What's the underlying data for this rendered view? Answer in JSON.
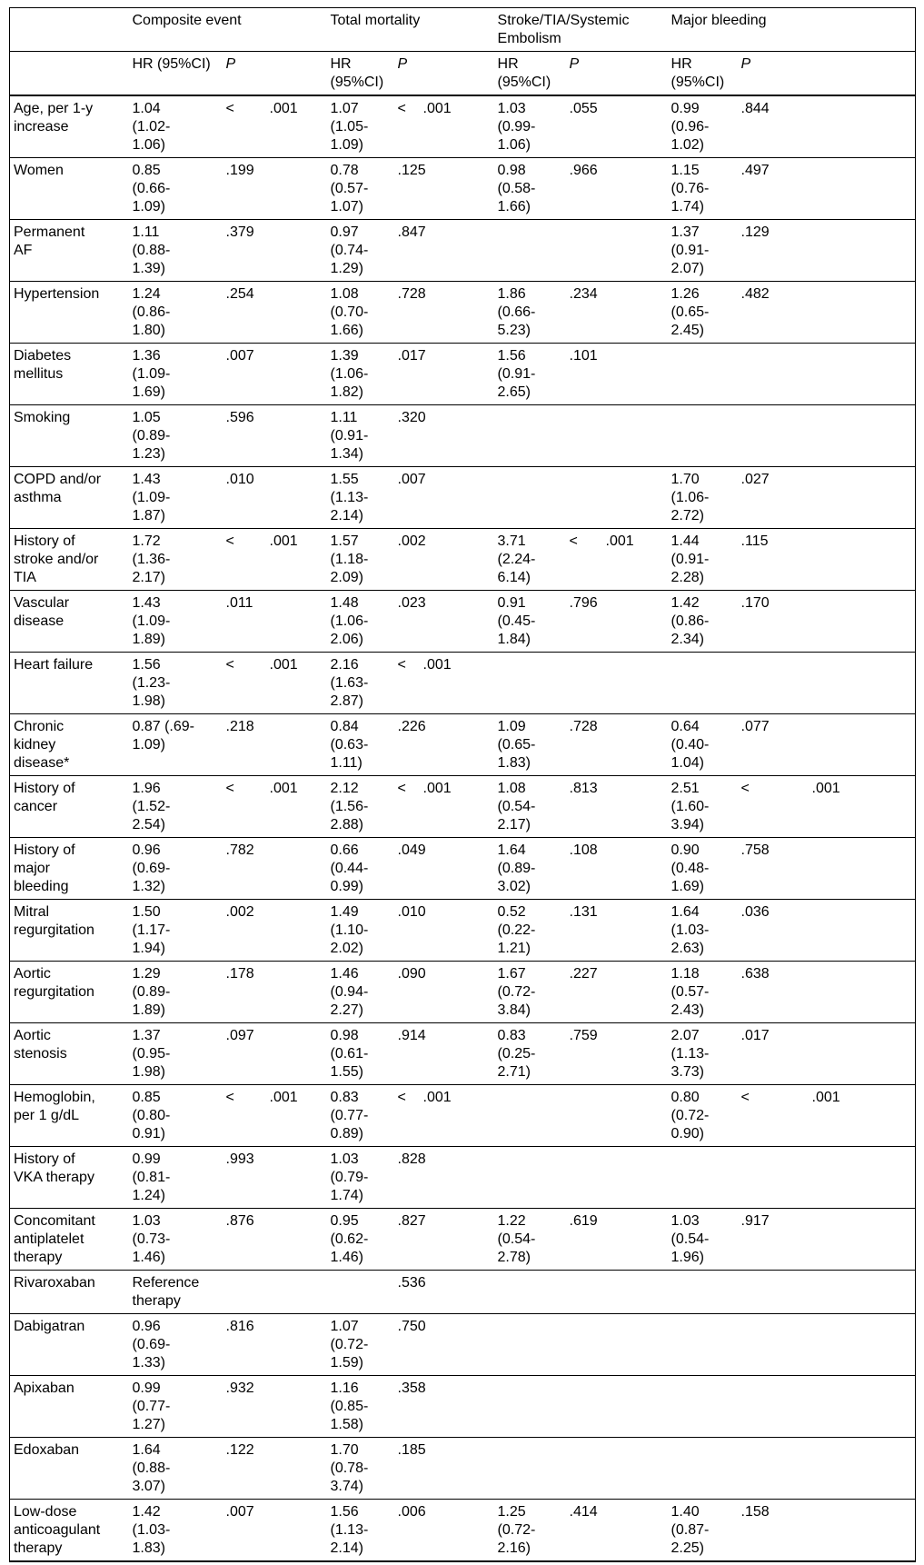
{
  "table": {
    "columns": {
      "row_header": "",
      "groups": [
        {
          "label": "Composite event"
        },
        {
          "label": "Total mortality"
        },
        {
          "label": "Stroke/TIA/Systemic Embolism"
        },
        {
          "label": "Major bleeding"
        }
      ],
      "sub_headers": {
        "hr": "HR (95%CI)",
        "p": "P"
      }
    },
    "rows": [
      {
        "label": "Age, per 1-y increase",
        "cells": [
          {
            "hr": "1.04 (1.02-1.06)",
            "p": "< .001"
          },
          {
            "hr": "1.07 (1.05-1.09)",
            "p": "< .001"
          },
          {
            "hr": "1.03 (0.99-1.06)",
            "p": ".055"
          },
          {
            "hr": "0.99 (0.96-1.02)",
            "p": ".844"
          }
        ]
      },
      {
        "label": "Women",
        "cells": [
          {
            "hr": "0.85 (0.66-1.09)",
            "p": ".199"
          },
          {
            "hr": "0.78 (0.57-1.07)",
            "p": ".125"
          },
          {
            "hr": "0.98 (0.58-1.66)",
            "p": ".966"
          },
          {
            "hr": "1.15 (0.76-1.74)",
            "p": ".497"
          }
        ]
      },
      {
        "label": "Permanent AF",
        "cells": [
          {
            "hr": "1.11 (0.88-1.39)",
            "p": ".379"
          },
          {
            "hr": "0.97 (0.74-1.29)",
            "p": ".847"
          },
          {
            "hr": "",
            "p": ""
          },
          {
            "hr": "1.37 (0.91-2.07)",
            "p": ".129"
          }
        ]
      },
      {
        "label": "Hypertension",
        "cells": [
          {
            "hr": "1.24 (0.86-1.80)",
            "p": ".254"
          },
          {
            "hr": "1.08 (0.70-1.66)",
            "p": ".728"
          },
          {
            "hr": "1.86 (0.66-5.23)",
            "p": ".234"
          },
          {
            "hr": "1.26 (0.65-2.45)",
            "p": ".482"
          }
        ]
      },
      {
        "label": "Diabetes mellitus",
        "cells": [
          {
            "hr": "1.36 (1.09-1.69)",
            "p": ".007"
          },
          {
            "hr": "1.39 (1.06-1.82)",
            "p": ".017"
          },
          {
            "hr": "1.56 (0.91-2.65)",
            "p": ".101"
          },
          {
            "hr": "",
            "p": ""
          }
        ]
      },
      {
        "label": "Smoking",
        "cells": [
          {
            "hr": "1.05 (0.89-1.23)",
            "p": ".596"
          },
          {
            "hr": "1.11 (0.91-1.34)",
            "p": ".320"
          },
          {
            "hr": "",
            "p": ""
          },
          {
            "hr": "",
            "p": ""
          }
        ]
      },
      {
        "label": "COPD and/or asthma",
        "cells": [
          {
            "hr": "1.43 (1.09-1.87)",
            "p": ".010"
          },
          {
            "hr": "1.55 (1.13-2.14)",
            "p": ".007"
          },
          {
            "hr": "",
            "p": ""
          },
          {
            "hr": "1.70 (1.06-2.72)",
            "p": ".027"
          }
        ]
      },
      {
        "label": "History of stroke and/or TIA",
        "cells": [
          {
            "hr": "1.72 (1.36-2.17)",
            "p": "< .001"
          },
          {
            "hr": "1.57 (1.18-2.09)",
            "p": ".002"
          },
          {
            "hr": "3.71 (2.24-6.14)",
            "p": "< .001"
          },
          {
            "hr": "1.44 (0.91-2.28)",
            "p": ".115"
          }
        ]
      },
      {
        "label": "Vascular disease",
        "cells": [
          {
            "hr": "1.43 (1.09-1.89)",
            "p": ".011"
          },
          {
            "hr": "1.48 (1.06-2.06)",
            "p": ".023"
          },
          {
            "hr": "0.91 (0.45-1.84)",
            "p": ".796"
          },
          {
            "hr": "1.42 (0.86-2.34)",
            "p": ".170"
          }
        ]
      },
      {
        "label": "Heart failure",
        "cells": [
          {
            "hr": "1.56 (1.23-1.98)",
            "p": "< .001"
          },
          {
            "hr": "2.16 (1.63-2.87)",
            "p": "< .001"
          },
          {
            "hr": "",
            "p": ""
          },
          {
            "hr": "",
            "p": ""
          }
        ]
      },
      {
        "label": "Chronic kidney disease*",
        "cells": [
          {
            "hr": "0.87 (.69-1.09)",
            "p": ".218"
          },
          {
            "hr": "0.84 (0.63-1.11)",
            "p": ".226"
          },
          {
            "hr": "1.09 (0.65-1.83)",
            "p": ".728"
          },
          {
            "hr": "0.64 (0.40-1.04)",
            "p": ".077"
          }
        ]
      },
      {
        "label": "History of cancer",
        "cells": [
          {
            "hr": "1.96 (1.52-2.54)",
            "p": "< .001"
          },
          {
            "hr": "2.12 (1.56-2.88)",
            "p": "< .001"
          },
          {
            "hr": "1.08 (0.54-2.17)",
            "p": ".813"
          },
          {
            "hr": "2.51 (1.60-3.94)",
            "p": "< .001"
          }
        ]
      },
      {
        "label": "History of major bleeding",
        "cells": [
          {
            "hr": "0.96 (0.69-1.32)",
            "p": ".782"
          },
          {
            "hr": "0.66 (0.44-0.99)",
            "p": ".049"
          },
          {
            "hr": "1.64 (0.89-3.02)",
            "p": ".108"
          },
          {
            "hr": "0.90 (0.48-1.69)",
            "p": ".758"
          }
        ]
      },
      {
        "label": "Mitral regurgitation",
        "cells": [
          {
            "hr": "1.50 (1.17-1.94)",
            "p": ".002"
          },
          {
            "hr": "1.49 (1.10-2.02)",
            "p": ".010"
          },
          {
            "hr": "0.52 (0.22-1.21)",
            "p": ".131"
          },
          {
            "hr": "1.64 (1.03-2.63)",
            "p": ".036"
          }
        ]
      },
      {
        "label": "Aortic regurgitation",
        "cells": [
          {
            "hr": "1.29 (0.89-1.89)",
            "p": ".178"
          },
          {
            "hr": "1.46 (0.94-2.27)",
            "p": ".090"
          },
          {
            "hr": "1.67 (0.72-3.84)",
            "p": ".227"
          },
          {
            "hr": "1.18 (0.57-2.43)",
            "p": ".638"
          }
        ]
      },
      {
        "label": "Aortic stenosis",
        "cells": [
          {
            "hr": "1.37 (0.95-1.98)",
            "p": ".097"
          },
          {
            "hr": "0.98 (0.61-1.55)",
            "p": ".914"
          },
          {
            "hr": "0.83 (0.25-2.71)",
            "p": ".759"
          },
          {
            "hr": "2.07 (1.13-3.73)",
            "p": ".017"
          }
        ]
      },
      {
        "label": "Hemoglobin, per 1 g/dL",
        "cells": [
          {
            "hr": "0.85 (0.80-0.91)",
            "p": "< .001"
          },
          {
            "hr": "0.83 (0.77-0.89)",
            "p": "< .001"
          },
          {
            "hr": "",
            "p": ""
          },
          {
            "hr": "0.80 (0.72-0.90)",
            "p": "< .001"
          }
        ]
      },
      {
        "label": "History of VKA therapy",
        "cells": [
          {
            "hr": "0.99 (0.81-1.24)",
            "p": ".993"
          },
          {
            "hr": "1.03 (0.79-1.74)",
            "p": ".828"
          },
          {
            "hr": "",
            "p": ""
          },
          {
            "hr": "",
            "p": ""
          }
        ]
      },
      {
        "label": "Concomitant antiplatelet therapy",
        "cells": [
          {
            "hr": "1.03 (0.73-1.46)",
            "p": ".876"
          },
          {
            "hr": "0.95 (0.62-1.46)",
            "p": ".827"
          },
          {
            "hr": "1.22 (0.54-2.78)",
            "p": ".619"
          },
          {
            "hr": "1.03 (0.54-1.96)",
            "p": ".917"
          }
        ]
      },
      {
        "label": "Rivaroxaban",
        "cells": [
          {
            "hr": "Reference therapy",
            "p": ""
          },
          {
            "hr": "",
            "p": ".536"
          },
          {
            "hr": "",
            "p": ""
          },
          {
            "hr": "",
            "p": ""
          }
        ]
      },
      {
        "label": "Dabigatran",
        "cells": [
          {
            "hr": "0.96 (0.69-1.33)",
            "p": ".816"
          },
          {
            "hr": "1.07 (0.72-1.59)",
            "p": ".750"
          },
          {
            "hr": "",
            "p": ""
          },
          {
            "hr": "",
            "p": ""
          }
        ]
      },
      {
        "label": "Apixaban",
        "cells": [
          {
            "hr": "0.99 (0.77-1.27)",
            "p": ".932"
          },
          {
            "hr": "1.16 (0.85-1.58)",
            "p": ".358"
          },
          {
            "hr": "",
            "p": ""
          },
          {
            "hr": "",
            "p": ""
          }
        ]
      },
      {
        "label": "Edoxaban",
        "cells": [
          {
            "hr": "1.64 (0.88-3.07)",
            "p": ".122"
          },
          {
            "hr": "1.70 (0.78-3.74)",
            "p": ".185"
          },
          {
            "hr": "",
            "p": ""
          },
          {
            "hr": "",
            "p": ""
          }
        ]
      },
      {
        "label": "Low-dose anticoagulant therapy",
        "cells": [
          {
            "hr": "1.42 (1.03-1.83)",
            "p": ".007"
          },
          {
            "hr": "1.56 (1.13-2.14)",
            "p": ".006"
          },
          {
            "hr": "1.25 (0.72-2.16)",
            "p": ".414"
          },
          {
            "hr": "1.40 (0.87-2.25)",
            "p": ".158"
          }
        ]
      }
    ]
  }
}
